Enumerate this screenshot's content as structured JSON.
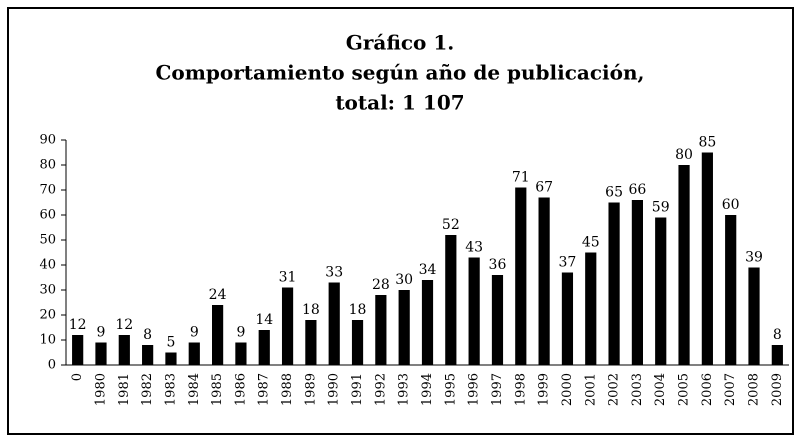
{
  "chart_data": {
    "type": "bar",
    "title": [
      "Gráfico 1.",
      "Comportamiento según año de publicación,",
      "total: 1 107"
    ],
    "categories": [
      "0",
      "1980",
      "1981",
      "1982",
      "1983",
      "1984",
      "1985",
      "1986",
      "1987",
      "1988",
      "1989",
      "1990",
      "1991",
      "1992",
      "1993",
      "1994",
      "1995",
      "1996",
      "1997",
      "1998",
      "1999",
      "2000",
      "2001",
      "2002",
      "2003",
      "2004",
      "2005",
      "2006",
      "2007",
      "2008",
      "2009"
    ],
    "values": [
      12,
      9,
      12,
      8,
      5,
      9,
      24,
      9,
      14,
      31,
      18,
      33,
      18,
      28,
      30,
      34,
      52,
      43,
      36,
      71,
      67,
      37,
      45,
      65,
      66,
      59,
      80,
      85,
      60,
      39,
      8
    ],
    "color": "#000000",
    "ylim": [
      0,
      90
    ],
    "yticks": [
      0,
      10,
      20,
      30,
      40,
      50,
      60,
      70,
      80,
      90
    ],
    "grid": false
  }
}
